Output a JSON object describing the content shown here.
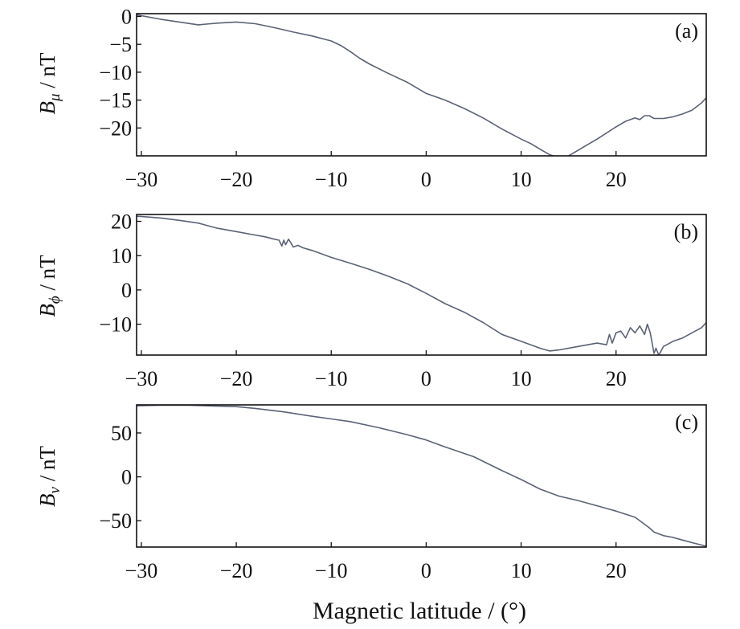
{
  "chart_data": {
    "type": "line",
    "xlabel": "Magnetic latitude / (°)",
    "series_color": "#5a6275",
    "panels": [
      {
        "id": "a",
        "panel_label": "(a)",
        "ylabel_main": "B",
        "ylabel_sub": "μ",
        "ylabel_unit": " / nT",
        "xlim": [
          -30.5,
          29.5
        ],
        "ylim": [
          -25,
          0.5
        ],
        "x_ticks": [
          -30,
          -20,
          -10,
          0,
          10,
          20
        ],
        "x_tick_labels": [
          "−30",
          "−20",
          "−10",
          "0",
          "10",
          "20"
        ],
        "y_ticks": [
          0,
          -5,
          -10,
          -15,
          -20
        ],
        "y_tick_labels": [
          "0",
          "−5",
          "−10",
          "−15",
          "−20"
        ],
        "series": [
          {
            "x": [
              -30.5,
              -28,
              -26,
              -24,
              -22,
              -20,
              -18,
              -16,
              -14,
              -12,
              -10,
              -9,
              -8,
              -7,
              -6,
              -4,
              -2,
              0,
              2,
              4,
              6,
              8,
              10,
              11,
              12,
              13,
              14,
              15,
              16,
              17,
              18,
              20,
              21,
              22,
              22.5,
              23,
              23.5,
              24,
              25,
              26,
              27,
              28,
              29,
              29.5
            ],
            "y": [
              0.3,
              -0.5,
              -1.0,
              -1.5,
              -1.2,
              -1.0,
              -1.3,
              -2.0,
              -2.8,
              -3.5,
              -4.4,
              -5.2,
              -6.3,
              -7.5,
              -8.5,
              -10.2,
              -11.8,
              -13.8,
              -15.0,
              -16.5,
              -18.2,
              -20.2,
              -22.0,
              -22.8,
              -23.8,
              -24.8,
              -25.3,
              -25.0,
              -24.0,
              -23.0,
              -22.0,
              -19.8,
              -18.8,
              -18.2,
              -18.5,
              -17.8,
              -17.8,
              -18.3,
              -18.3,
              -18.0,
              -17.5,
              -16.8,
              -15.5,
              -14.6
            ]
          }
        ]
      },
      {
        "id": "b",
        "panel_label": "(b)",
        "ylabel_main": "B",
        "ylabel_sub": "ϕ",
        "ylabel_unit": " / nT",
        "xlim": [
          -30.5,
          29.5
        ],
        "ylim": [
          -19,
          22
        ],
        "x_ticks": [
          -30,
          -20,
          -10,
          0,
          10,
          20
        ],
        "x_tick_labels": [
          "−30",
          "−20",
          "−10",
          "0",
          "10",
          "20"
        ],
        "y_ticks": [
          20,
          10,
          0,
          -10
        ],
        "y_tick_labels": [
          "20",
          "10",
          "0",
          "−10"
        ],
        "series": [
          {
            "x": [
              -30.5,
              -28,
              -26,
              -24,
              -22,
              -20,
              -18,
              -17,
              -16,
              -15.5,
              -15.2,
              -15,
              -14.8,
              -14.5,
              -14.2,
              -14,
              -13.5,
              -13,
              -12,
              -10,
              -8,
              -6,
              -4,
              -2,
              0,
              2,
              4,
              6,
              8,
              10,
              12,
              13,
              14,
              16,
              18,
              19,
              19.3,
              19.6,
              20,
              20.5,
              21,
              21.5,
              22,
              22.5,
              23,
              23.3,
              23.6,
              24,
              24.2,
              24.5,
              25,
              26,
              27,
              28,
              29,
              29.5
            ],
            "y": [
              21.5,
              21.0,
              20.3,
              19.5,
              18.0,
              17.0,
              16.0,
              15.5,
              14.8,
              14.5,
              12.8,
              14.5,
              13.2,
              14.8,
              13.5,
              12.5,
              13.0,
              12.3,
              11.5,
              9.5,
              7.8,
              6.0,
              4.0,
              1.8,
              -1.0,
              -4.0,
              -6.5,
              -9.5,
              -13.0,
              -15.0,
              -17.0,
              -17.8,
              -17.5,
              -16.5,
              -15.5,
              -16.0,
              -13.0,
              -15.5,
              -12.5,
              -12.0,
              -14.0,
              -11.0,
              -12.5,
              -10.5,
              -13.0,
              -10.0,
              -12.5,
              -18.5,
              -17.0,
              -19.0,
              -16.5,
              -15.0,
              -14.0,
              -12.5,
              -11.0,
              -9.5
            ]
          }
        ]
      },
      {
        "id": "c",
        "panel_label": "(c)",
        "ylabel_main": "B",
        "ylabel_sub": "ν",
        "ylabel_unit": " / nT",
        "xlim": [
          -30.5,
          29.5
        ],
        "ylim": [
          -80,
          82
        ],
        "x_ticks": [
          -30,
          -20,
          -10,
          0,
          10,
          20
        ],
        "x_tick_labels": [
          "−30",
          "−20",
          "−10",
          "0",
          "10",
          "20"
        ],
        "y_ticks": [
          50,
          0,
          -50
        ],
        "y_tick_labels": [
          "50",
          "0",
          "−50"
        ],
        "series": [
          {
            "x": [
              -30.5,
              -28,
              -25,
              -22,
              -20,
              -18,
              -15,
              -12,
              -10,
              -8,
              -5,
              -2,
              0,
              2,
              5,
              8,
              10,
              12,
              14,
              16,
              18,
              20,
              22,
              23,
              23.5,
              24,
              25,
              26,
              27,
              28,
              29.5
            ],
            "y": [
              81,
              81.5,
              81.5,
              80.5,
              80,
              78,
              74,
              69,
              66,
              63,
              56,
              48,
              42,
              34,
              23,
              7,
              -3,
              -14,
              -22,
              -27,
              -33,
              -39,
              -46,
              -54,
              -58,
              -63,
              -67,
              -69,
              -72,
              -75,
              -79
            ]
          }
        ]
      }
    ]
  }
}
